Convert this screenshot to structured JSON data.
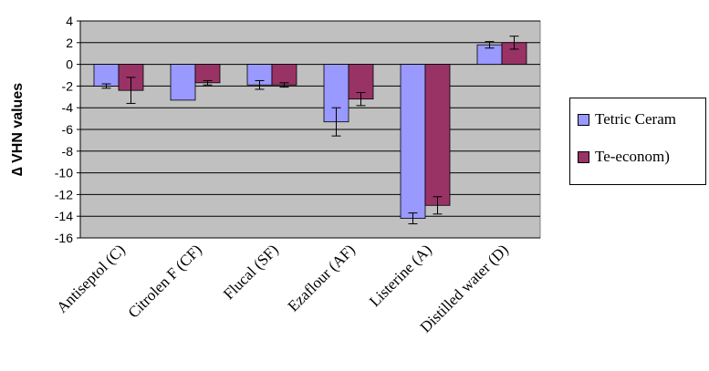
{
  "chart_data": {
    "type": "bar",
    "title": "",
    "xlabel": "",
    "ylabel": "∆ VHN values",
    "ylim": [
      -16,
      4
    ],
    "yticks": [
      4,
      2,
      0,
      -2,
      -4,
      -6,
      -8,
      -10,
      -12,
      -14,
      -16
    ],
    "grid": true,
    "legend_position": "right",
    "categories": [
      "Antiseptol (C)",
      "Citrolen F (CF)",
      "Flucal (SF)",
      "Ezaflour (AF)",
      "Listerine (A)",
      "Distilled water (D)"
    ],
    "series": [
      {
        "name": "Tetric Ceram",
        "color": "#9999ff",
        "values": [
          -2.0,
          -3.3,
          -1.9,
          -5.3,
          -14.2,
          1.8
        ],
        "errors": [
          0.2,
          0.0,
          0.4,
          1.3,
          0.5,
          0.3
        ]
      },
      {
        "name": "Te-econom)",
        "color": "#993366",
        "values": [
          -2.4,
          -1.7,
          -1.9,
          -3.2,
          -13.0,
          2.0
        ],
        "errors": [
          1.2,
          0.2,
          0.2,
          0.6,
          0.8,
          0.6
        ]
      }
    ],
    "plot_background": "#c0c0c0"
  }
}
